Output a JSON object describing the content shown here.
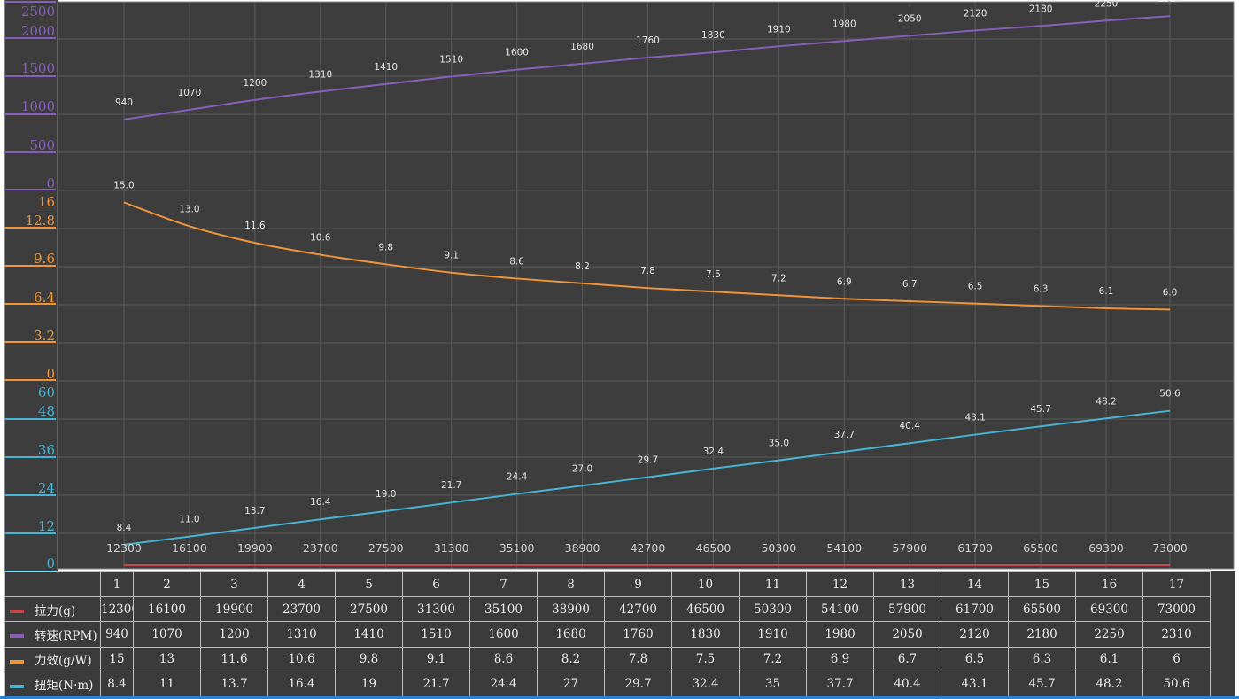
{
  "chart_data": {
    "type": "line",
    "categories": [
      "1",
      "2",
      "3",
      "4",
      "5",
      "6",
      "7",
      "8",
      "9",
      "10",
      "11",
      "12",
      "13",
      "14",
      "15",
      "16",
      "17"
    ],
    "x": [
      12300,
      16100,
      19900,
      23700,
      27500,
      31300,
      35100,
      38900,
      42700,
      46500,
      50300,
      54100,
      57900,
      61700,
      65500,
      69300,
      73000
    ],
    "series": [
      {
        "name": "拉力(g)",
        "color": "#c8464b",
        "values": [
          12300,
          16100,
          19900,
          23700,
          27500,
          31300,
          35100,
          38900,
          42700,
          46500,
          50300,
          54100,
          57900,
          61700,
          65500,
          69300,
          73000
        ]
      },
      {
        "name": "转速(RPM)",
        "color": "#8660b8",
        "values": [
          940,
          1070,
          1200,
          1310,
          1410,
          1510,
          1600,
          1680,
          1760,
          1830,
          1910,
          1980,
          2050,
          2120,
          2180,
          2250,
          2310
        ],
        "ticks": [
          "2500",
          "2000",
          "1500",
          "1000",
          "500",
          "0"
        ],
        "ylim": [
          0,
          2500
        ]
      },
      {
        "name": "力效(g/W)",
        "color": "#f0943a",
        "values": [
          15,
          13,
          11.6,
          10.6,
          9.8,
          9.1,
          8.6,
          8.2,
          7.8,
          7.5,
          7.2,
          6.9,
          6.7,
          6.5,
          6.3,
          6.1,
          6
        ],
        "labels": [
          "15.0",
          "13.0",
          "11.6",
          "10.6",
          "9.8",
          "9.1",
          "8.6",
          "8.2",
          "7.8",
          "7.5",
          "7.2",
          "6.9",
          "6.7",
          "6.5",
          "6.3",
          "6.1",
          "6.0"
        ],
        "ticks": [
          "16",
          "12.8",
          "9.6",
          "6.4",
          "3.2",
          "0"
        ],
        "ylim": [
          0,
          16
        ]
      },
      {
        "name": "扭矩(N·m)",
        "color": "#46b4d2",
        "values": [
          8.4,
          11,
          13.7,
          16.4,
          19,
          21.7,
          24.4,
          27,
          29.7,
          32.4,
          35,
          37.7,
          40.4,
          43.1,
          45.7,
          48.2,
          50.6
        ],
        "labels": [
          "8.4",
          "11.0",
          "13.7",
          "16.4",
          "19.0",
          "21.7",
          "24.4",
          "27.0",
          "29.7",
          "32.4",
          "35.0",
          "37.7",
          "40.4",
          "43.1",
          "45.7",
          "48.2",
          "50.6"
        ],
        "ticks": [
          "60",
          "48",
          "36",
          "24",
          "12",
          "0"
        ],
        "ylim": [
          0,
          60
        ]
      }
    ],
    "xticks": [
      "12300",
      "16100",
      "19900",
      "23700",
      "27500",
      "31300",
      "35100",
      "38900",
      "42700",
      "46500",
      "50300",
      "54100",
      "57900",
      "61700",
      "65500",
      "69300",
      "73000"
    ],
    "grid": true
  },
  "table": {
    "header": [
      "",
      "1",
      "2",
      "3",
      "4",
      "5",
      "6",
      "7",
      "8",
      "9",
      "10",
      "11",
      "12",
      "13",
      "14",
      "15",
      "16",
      "17"
    ],
    "rows": [
      {
        "label": "拉力(g)",
        "color": "#c8464b",
        "cells": [
          "12300",
          "16100",
          "19900",
          "23700",
          "27500",
          "31300",
          "35100",
          "38900",
          "42700",
          "46500",
          "50300",
          "54100",
          "57900",
          "61700",
          "65500",
          "69300",
          "73000"
        ]
      },
      {
        "label": "转速(RPM)",
        "color": "#8660b8",
        "cells": [
          "940",
          "1070",
          "1200",
          "1310",
          "1410",
          "1510",
          "1600",
          "1680",
          "1760",
          "1830",
          "1910",
          "1980",
          "2050",
          "2120",
          "2180",
          "2250",
          "2310"
        ]
      },
      {
        "label": "力效(g/W)",
        "color": "#f0943a",
        "cells": [
          "15",
          "13",
          "11.6",
          "10.6",
          "9.8",
          "9.1",
          "8.6",
          "8.2",
          "7.8",
          "7.5",
          "7.2",
          "6.9",
          "6.7",
          "6.5",
          "6.3",
          "6.1",
          "6"
        ]
      },
      {
        "label": "扭矩(N·m)",
        "color": "#46b4d2",
        "cells": [
          "8.4",
          "11",
          "13.7",
          "16.4",
          "19",
          "21.7",
          "24.4",
          "27",
          "29.7",
          "32.4",
          "35",
          "37.7",
          "40.4",
          "43.1",
          "45.7",
          "48.2",
          "50.6"
        ]
      }
    ]
  }
}
